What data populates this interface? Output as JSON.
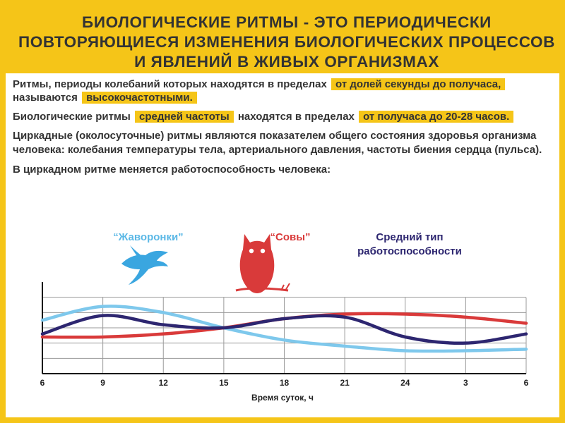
{
  "header": {
    "title": "БИОЛОГИЧЕСКИЕ РИТМЫ - ЭТО ПЕРИОДИЧЕСКИ ПОВТОРЯЮЩИЕСЯ ИЗМЕНЕНИЯ БИОЛОГИЧЕСКИХ ПРОЦЕССОВ И ЯВЛЕНИЙ В ЖИВЫХ ОРГАНИЗМАХ"
  },
  "paragraphs": {
    "p1": {
      "t1": "Ритмы, периоды колебаний которых находятся в пределах",
      "h1": "от долей секунды до получаса,",
      "t2": "называются",
      "h2": "высокочастотными."
    },
    "p2": {
      "t1": "Биологические ритмы",
      "h1": "средней частоты",
      "t2": "находятся в пределах",
      "h2": "от получаса до 20-28 часов."
    },
    "p3": "Циркадные (околосуточные) ритмы являются показателем общего состояния здоровья организма человека: колебания температуры тела, артериального давления, частоты биения сердца (пульса).",
    "p4": "В циркадном ритме меняется работоспособность человека:"
  },
  "legend": {
    "larks": "“Жаворонки”",
    "owls": "“Совы”",
    "average_line1": "Средний тип",
    "average_line2": "работоспособности"
  },
  "colors": {
    "accent": "#f5c518",
    "larks": "#7ec8ec",
    "owls": "#d93a3a",
    "average": "#2d2670",
    "text": "#333333"
  },
  "icons": {
    "larks": "bird-icon",
    "owls": "owl-icon"
  },
  "chart_data": {
    "type": "line",
    "x": [
      "6",
      "9",
      "12",
      "15",
      "18",
      "21",
      "24",
      "3",
      "6"
    ],
    "xlabel": "Время суток, ч",
    "ylabel": "",
    "title": "",
    "grid": true,
    "series": [
      {
        "name": "“Жаворонки”",
        "values": [
          3.5,
          4.4,
          4.0,
          3.0,
          2.2,
          1.8,
          1.5,
          1.5,
          1.6
        ]
      },
      {
        "name": "“Совы”",
        "values": [
          2.4,
          2.4,
          2.6,
          3.0,
          3.6,
          3.9,
          3.9,
          3.7,
          3.3
        ]
      },
      {
        "name": "Средний тип работоспособности",
        "values": [
          2.6,
          3.8,
          3.2,
          3.0,
          3.6,
          3.7,
          2.4,
          2.0,
          2.6
        ]
      }
    ],
    "ylim": [
      0,
      6
    ]
  }
}
